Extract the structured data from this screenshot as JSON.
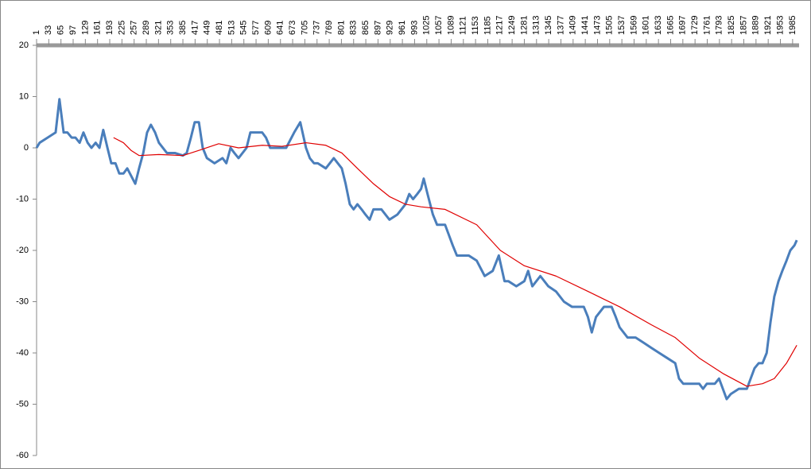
{
  "chart_data": {
    "type": "line",
    "xlim": [
      1,
      2002
    ],
    "xticks": [
      1,
      33,
      65,
      97,
      129,
      161,
      193,
      225,
      257,
      289,
      321,
      353,
      385,
      417,
      449,
      481,
      513,
      545,
      577,
      609,
      641,
      673,
      705,
      737,
      769,
      801,
      833,
      865,
      897,
      929,
      961,
      993,
      1025,
      1057,
      1089,
      1121,
      1153,
      1185,
      1217,
      1249,
      1281,
      1313,
      1345,
      1377,
      1409,
      1441,
      1473,
      1505,
      1537,
      1569,
      1601,
      1633,
      1665,
      1697,
      1729,
      1761,
      1793,
      1825,
      1857,
      1889,
      1921,
      1953,
      1985
    ],
    "ylim": [
      -60,
      20
    ],
    "yticks": [
      20,
      10,
      0,
      -10,
      -20,
      -30,
      -40,
      -50,
      -60
    ],
    "grid": false,
    "series": [
      {
        "color": "#4a7ebb",
        "x": [
          1,
          9,
          30,
          51,
          61,
          72,
          82,
          93,
          103,
          114,
          124,
          135,
          145,
          156,
          166,
          176,
          187,
          197,
          208,
          218,
          229,
          239,
          260,
          270,
          281,
          291,
          301,
          312,
          322,
          343,
          364,
          385,
          395,
          406,
          416,
          427,
          437,
          448,
          468,
          489,
          499,
          510,
          520,
          531,
          552,
          562,
          572,
          593,
          603,
          614,
          635,
          656,
          677,
          693,
          708,
          718,
          729,
          739,
          760,
          781,
          802,
          812,
          823,
          833,
          843,
          854,
          864,
          875,
          885,
          906,
          927,
          948,
          969,
          979,
          989,
          1000,
          1010,
          1017,
          1027,
          1041,
          1052,
          1073,
          1083,
          1093,
          1104,
          1114,
          1135,
          1156,
          1177,
          1198,
          1214,
          1229,
          1239,
          1260,
          1281,
          1291,
          1302,
          1323,
          1344,
          1364,
          1385,
          1406,
          1427,
          1437,
          1448,
          1458,
          1469,
          1490,
          1510,
          1521,
          1531,
          1552,
          1573,
          1594,
          1614,
          1635,
          1656,
          1677,
          1687,
          1698,
          1719,
          1740,
          1750,
          1760,
          1781,
          1792,
          1802,
          1812,
          1823,
          1844,
          1865,
          1875,
          1885,
          1896,
          1906,
          1917,
          1927,
          1937,
          1948,
          1958,
          1969,
          1979,
          1990,
          1996
        ],
        "values": [
          0,
          1,
          2,
          3,
          9.5,
          3,
          3,
          2,
          2,
          1,
          3,
          1,
          0,
          1,
          0,
          3.5,
          0,
          -3,
          -3,
          -5,
          -5,
          -4,
          -7,
          -4,
          -1,
          3,
          4.5,
          3,
          1,
          -1,
          -1,
          -1.5,
          -1,
          2,
          5,
          5,
          0,
          -2,
          -3,
          -2,
          -3,
          0,
          -1,
          -2,
          0,
          3,
          3,
          3,
          2,
          0,
          0,
          0,
          3,
          5,
          0,
          -2,
          -3,
          -3,
          -4,
          -2,
          -4,
          -7,
          -11,
          -12,
          -11,
          -12,
          -13,
          -14,
          -12,
          -12,
          -14,
          -13,
          -11,
          -9,
          -10,
          -9,
          -8,
          -6,
          -9,
          -13,
          -15,
          -15,
          -17,
          -19,
          -21,
          -21,
          -21,
          -22,
          -25,
          -24,
          -21,
          -26,
          -26,
          -27,
          -26,
          -24,
          -27,
          -25,
          -27,
          -28,
          -30,
          -31,
          -31,
          -31,
          -33,
          -36,
          -33,
          -31,
          -31,
          -33,
          -35,
          -37,
          -37,
          -38,
          -39,
          -40,
          -41,
          -42,
          -45,
          -46,
          -46,
          -46,
          -47,
          -46,
          -46,
          -45,
          -47,
          -49,
          -48,
          -47,
          -47,
          -45,
          -43,
          -42,
          -42,
          -40,
          -34,
          -29,
          -26,
          -24,
          -22,
          -20,
          -19,
          -18
        ]
      },
      {
        "color": "#e00000",
        "x": [
          203,
          229,
          249,
          270,
          322,
          385,
          427,
          479,
          531,
          593,
          645,
          708,
          760,
          802,
          843,
          885,
          927,
          969,
          1010,
          1073,
          1156,
          1218,
          1281,
          1364,
          1448,
          1531,
          1614,
          1677,
          1740,
          1802,
          1865,
          1906,
          1937,
          1969,
          1996
        ],
        "values": [
          2,
          1,
          -0.5,
          -1.5,
          -1.3,
          -1.5,
          -0.5,
          0.8,
          0,
          0.5,
          0.3,
          1,
          0.5,
          -1,
          -4,
          -7,
          -9.5,
          -11,
          -11.5,
          -12,
          -15,
          -20,
          -23,
          -25,
          -28,
          -31,
          -34.5,
          -37,
          -41,
          -44,
          -46.5,
          -46,
          -45,
          -42,
          -38.5
        ]
      }
    ]
  }
}
